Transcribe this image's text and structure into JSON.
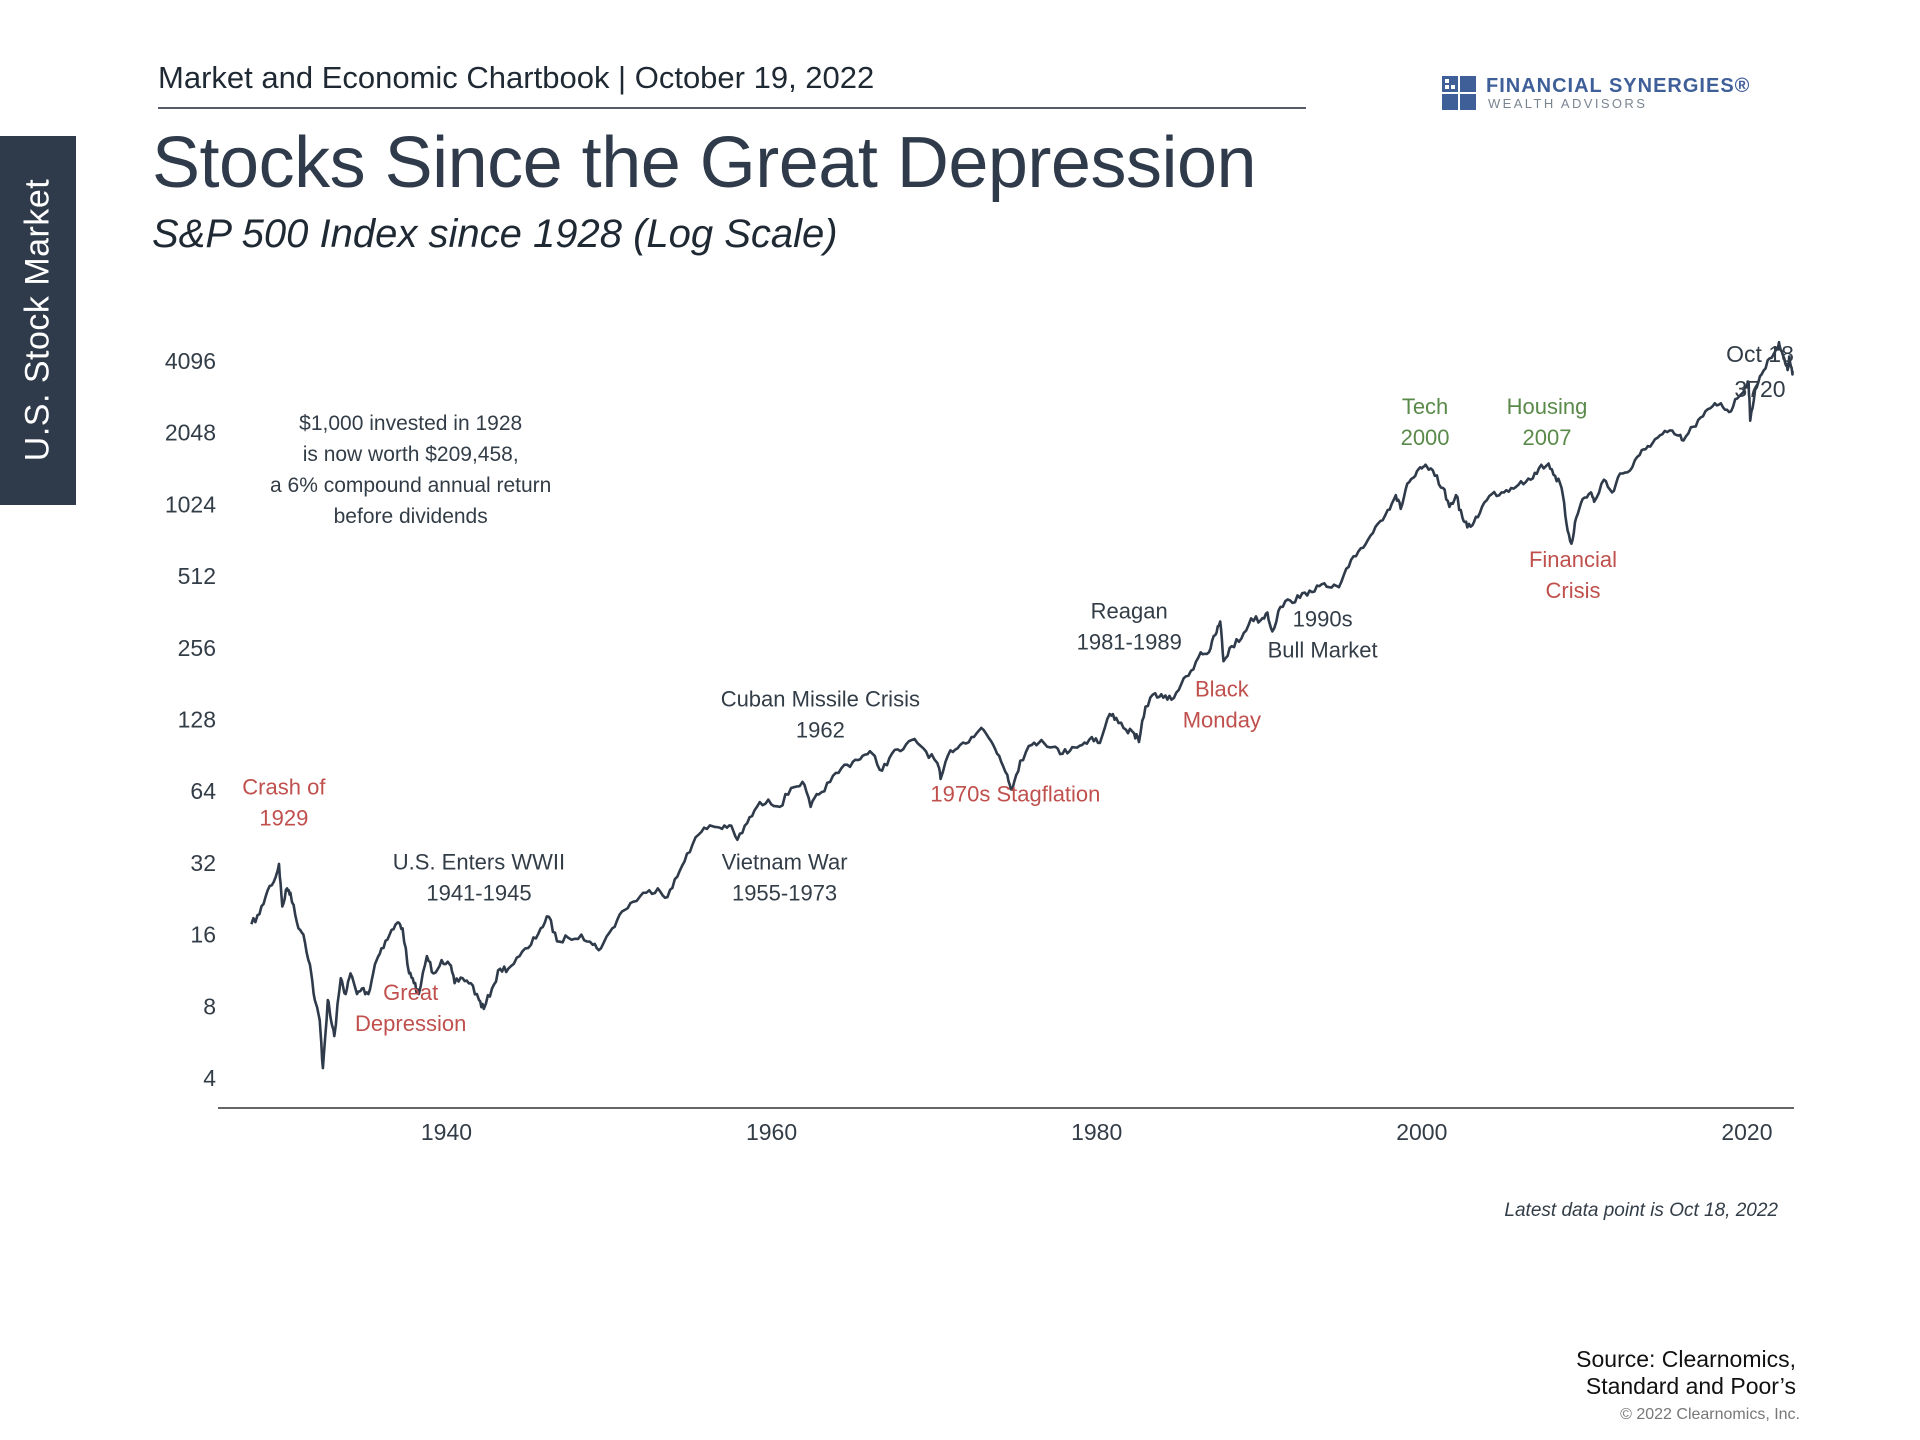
{
  "side_tab": "U.S. Stock Market",
  "header": "Market and Economic Chartbook | October 19, 2022",
  "logo": {
    "name": "FINANCIAL SYNERGIES®",
    "sub": "WEALTH ADVISORS"
  },
  "title": "Stocks Since the Great Depression",
  "subtitle": "S&P 500 Index since 1928 (Log Scale)",
  "note": "Latest data point is Oct 18, 2022",
  "source": [
    "Source: Clearnomics,",
    "Standard and Poor’s"
  ],
  "copyright": "© 2022 Clearnomics, Inc.",
  "colors": {
    "line": "#2f3b4a",
    "crisis": "#c0504d",
    "peak": "#5a8a4a",
    "tab": "#2f3b4a",
    "logo": "#3f5f99"
  },
  "chart_data": {
    "type": "line",
    "scale": "log2",
    "xlim": [
      1928,
      2023
    ],
    "ylim": [
      4,
      4096
    ],
    "x_ticks": [
      1940,
      1960,
      1980,
      2000,
      2020
    ],
    "y_ticks": [
      4,
      8,
      16,
      32,
      64,
      128,
      256,
      512,
      1024,
      2048,
      4096
    ],
    "grid": false,
    "series": [
      {
        "points": [
          [
            1928.0,
            17.7
          ],
          [
            1928.5,
            19.5
          ],
          [
            1929.0,
            24.5
          ],
          [
            1929.5,
            28
          ],
          [
            1929.7,
            31.7
          ],
          [
            1929.9,
            21
          ],
          [
            1930.2,
            25
          ],
          [
            1930.4,
            24
          ],
          [
            1930.8,
            18
          ],
          [
            1931.2,
            16
          ],
          [
            1931.6,
            12
          ],
          [
            1931.9,
            8.5
          ],
          [
            1932.2,
            7
          ],
          [
            1932.4,
            4.4
          ],
          [
            1932.7,
            8.5
          ],
          [
            1932.9,
            7
          ],
          [
            1933.1,
            6
          ],
          [
            1933.5,
            10.5
          ],
          [
            1933.8,
            9
          ],
          [
            1934.1,
            11
          ],
          [
            1934.5,
            9
          ],
          [
            1934.8,
            9.5
          ],
          [
            1935.2,
            9
          ],
          [
            1935.6,
            12
          ],
          [
            1936.0,
            14
          ],
          [
            1936.5,
            16
          ],
          [
            1937.0,
            18
          ],
          [
            1937.3,
            17
          ],
          [
            1937.7,
            11
          ],
          [
            1938.0,
            10
          ],
          [
            1938.3,
            9
          ],
          [
            1938.8,
            13
          ],
          [
            1939.2,
            11
          ],
          [
            1939.7,
            12.5
          ],
          [
            1940.2,
            12
          ],
          [
            1940.5,
            10
          ],
          [
            1941.0,
            10.5
          ],
          [
            1941.5,
            10
          ],
          [
            1942.0,
            8.5
          ],
          [
            1942.3,
            7.8
          ],
          [
            1942.8,
            9.5
          ],
          [
            1943.3,
            11.5
          ],
          [
            1943.8,
            11.5
          ],
          [
            1944.5,
            13
          ],
          [
            1945.2,
            14.5
          ],
          [
            1945.8,
            17
          ],
          [
            1946.3,
            19
          ],
          [
            1946.8,
            15
          ],
          [
            1947.5,
            15.5
          ],
          [
            1948.3,
            16
          ],
          [
            1949.0,
            14.5
          ],
          [
            1949.5,
            14
          ],
          [
            1950.2,
            17
          ],
          [
            1950.8,
            20
          ],
          [
            1951.5,
            22
          ],
          [
            1952.3,
            24
          ],
          [
            1953.0,
            25
          ],
          [
            1953.6,
            23
          ],
          [
            1954.2,
            28
          ],
          [
            1954.8,
            35
          ],
          [
            1955.5,
            42
          ],
          [
            1956.2,
            46
          ],
          [
            1956.8,
            45
          ],
          [
            1957.4,
            46
          ],
          [
            1957.9,
            40
          ],
          [
            1958.5,
            47
          ],
          [
            1959.1,
            55
          ],
          [
            1959.8,
            59
          ],
          [
            1960.5,
            55
          ],
          [
            1961.2,
            66
          ],
          [
            1961.9,
            70
          ],
          [
            1962.4,
            55
          ],
          [
            1962.9,
            62
          ],
          [
            1963.6,
            70
          ],
          [
            1964.3,
            80
          ],
          [
            1965.0,
            85
          ],
          [
            1965.6,
            90
          ],
          [
            1966.2,
            92
          ],
          [
            1966.8,
            78
          ],
          [
            1967.4,
            92
          ],
          [
            1968.1,
            96
          ],
          [
            1968.8,
            106
          ],
          [
            1969.5,
            94
          ],
          [
            1970.2,
            84
          ],
          [
            1970.4,
            72
          ],
          [
            1971.0,
            95
          ],
          [
            1971.6,
            100
          ],
          [
            1972.3,
            108
          ],
          [
            1972.9,
            118
          ],
          [
            1973.5,
            104
          ],
          [
            1974.0,
            90
          ],
          [
            1974.5,
            75
          ],
          [
            1974.8,
            65
          ],
          [
            1975.3,
            86
          ],
          [
            1976.0,
            100
          ],
          [
            1976.6,
            105
          ],
          [
            1977.3,
            98
          ],
          [
            1977.9,
            92
          ],
          [
            1978.5,
            98
          ],
          [
            1979.1,
            100
          ],
          [
            1979.7,
            108
          ],
          [
            1980.2,
            102
          ],
          [
            1980.8,
            135
          ],
          [
            1981.2,
            130
          ],
          [
            1981.8,
            116
          ],
          [
            1982.3,
            112
          ],
          [
            1982.6,
            103
          ],
          [
            1983.0,
            145
          ],
          [
            1983.6,
            165
          ],
          [
            1984.1,
            158
          ],
          [
            1984.6,
            155
          ],
          [
            1985.2,
            180
          ],
          [
            1985.8,
            205
          ],
          [
            1986.4,
            245
          ],
          [
            1986.9,
            245
          ],
          [
            1987.3,
            290
          ],
          [
            1987.6,
            330
          ],
          [
            1987.8,
            225
          ],
          [
            1988.3,
            260
          ],
          [
            1988.9,
            280
          ],
          [
            1989.5,
            340
          ],
          [
            1990.1,
            335
          ],
          [
            1990.5,
            360
          ],
          [
            1990.8,
            300
          ],
          [
            1991.3,
            380
          ],
          [
            1991.9,
            405
          ],
          [
            1992.5,
            415
          ],
          [
            1993.1,
            445
          ],
          [
            1993.7,
            465
          ],
          [
            1994.3,
            460
          ],
          [
            1994.9,
            460
          ],
          [
            1995.5,
            560
          ],
          [
            1996.1,
            650
          ],
          [
            1996.7,
            730
          ],
          [
            1997.3,
            850
          ],
          [
            1997.9,
            970
          ],
          [
            1998.4,
            1120
          ],
          [
            1998.7,
            980
          ],
          [
            1999.1,
            1250
          ],
          [
            1999.6,
            1350
          ],
          [
            2000.0,
            1450
          ],
          [
            2000.3,
            1480
          ],
          [
            2000.8,
            1350
          ],
          [
            2001.3,
            1200
          ],
          [
            2001.7,
            1000
          ],
          [
            2002.1,
            1120
          ],
          [
            2002.5,
            900
          ],
          [
            2002.8,
            820
          ],
          [
            2003.2,
            860
          ],
          [
            2003.7,
            1000
          ],
          [
            2004.3,
            1130
          ],
          [
            2004.9,
            1150
          ],
          [
            2005.5,
            1200
          ],
          [
            2006.1,
            1280
          ],
          [
            2006.7,
            1300
          ],
          [
            2007.2,
            1450
          ],
          [
            2007.8,
            1520
          ],
          [
            2008.2,
            1350
          ],
          [
            2008.6,
            1200
          ],
          [
            2008.9,
            850
          ],
          [
            2009.2,
            700
          ],
          [
            2009.5,
            900
          ],
          [
            2009.9,
            1080
          ],
          [
            2010.4,
            1150
          ],
          [
            2010.6,
            1050
          ],
          [
            2011.2,
            1300
          ],
          [
            2011.7,
            1150
          ],
          [
            2012.2,
            1380
          ],
          [
            2012.8,
            1420
          ],
          [
            2013.4,
            1650
          ],
          [
            2013.9,
            1800
          ],
          [
            2014.5,
            1950
          ],
          [
            2015.1,
            2060
          ],
          [
            2015.7,
            2000
          ],
          [
            2016.1,
            1900
          ],
          [
            2016.7,
            2170
          ],
          [
            2017.3,
            2400
          ],
          [
            2017.9,
            2650
          ],
          [
            2018.4,
            2720
          ],
          [
            2018.9,
            2500
          ],
          [
            2019.4,
            2850
          ],
          [
            2019.9,
            3200
          ],
          [
            2020.1,
            3350
          ],
          [
            2020.2,
            2300
          ],
          [
            2020.5,
            3100
          ],
          [
            2020.9,
            3600
          ],
          [
            2021.4,
            4200
          ],
          [
            2021.9,
            4700
          ],
          [
            2022.0,
            4780
          ],
          [
            2022.3,
            4200
          ],
          [
            2022.5,
            3750
          ],
          [
            2022.6,
            4280
          ],
          [
            2022.8,
            3600
          ],
          [
            2022.8,
            3720
          ]
        ]
      }
    ],
    "end_label": [
      "Oct 18",
      "3720"
    ],
    "annotations": [
      {
        "lines": [
          "$1,000 invested in 1928",
          "is now worth $209,458,",
          "a 6% compound annual return",
          "before dividends"
        ],
        "x": 1937.8,
        "y": 2100,
        "kind": "info"
      },
      {
        "lines": [
          "Crash of",
          "1929"
        ],
        "x": 1930.0,
        "y": 62,
        "kind": "crisis"
      },
      {
        "lines": [
          "Great",
          "Depression"
        ],
        "x": 1937.8,
        "y": 8.5,
        "kind": "crisis"
      },
      {
        "lines": [
          "U.S. Enters WWII",
          "1941-1945"
        ],
        "x": 1942.0,
        "y": 30,
        "kind": "event"
      },
      {
        "lines": [
          "Vietnam War",
          "1955-1973"
        ],
        "x": 1960.8,
        "y": 30,
        "kind": "event"
      },
      {
        "lines": [
          "Cuban Missile Crisis",
          "1962"
        ],
        "x": 1963.0,
        "y": 145,
        "kind": "event"
      },
      {
        "lines": [
          "1970s Stagflation"
        ],
        "x": 1975.0,
        "y": 58,
        "kind": "crisis"
      },
      {
        "lines": [
          "Reagan",
          "1981-1989"
        ],
        "x": 1982.0,
        "y": 340,
        "kind": "event"
      },
      {
        "lines": [
          "Black",
          "Monday"
        ],
        "x": 1987.7,
        "y": 160,
        "kind": "crisis"
      },
      {
        "lines": [
          "1990s",
          "Bull Market"
        ],
        "x": 1993.9,
        "y": 315,
        "kind": "event"
      },
      {
        "lines": [
          "Tech",
          "2000"
        ],
        "x": 2000.2,
        "y": 2450,
        "kind": "peak"
      },
      {
        "lines": [
          "Housing",
          "2007"
        ],
        "x": 2007.7,
        "y": 2450,
        "kind": "peak"
      },
      {
        "lines": [
          "Financial",
          "Crisis"
        ],
        "x": 2009.3,
        "y": 560,
        "kind": "crisis"
      }
    ]
  }
}
